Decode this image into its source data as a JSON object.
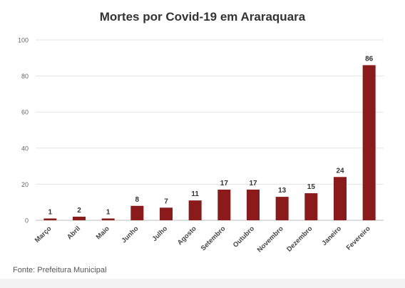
{
  "chart_data": {
    "type": "bar",
    "title": "Mortes por Covid-19 em Araraquara",
    "categories": [
      "Março",
      "Abril",
      "Maio",
      "Junho",
      "Julho",
      "Agosto",
      "Setembro",
      "Outubro",
      "Novembro",
      "Dezembro",
      "Janeiro",
      "Fevereiro"
    ],
    "values": [
      1,
      2,
      1,
      8,
      7,
      11,
      17,
      17,
      13,
      15,
      24,
      86
    ],
    "xlabel": "",
    "ylabel": "",
    "ylim": [
      0,
      100
    ],
    "yticks": [
      0,
      20,
      40,
      60,
      80,
      100
    ],
    "grid": true,
    "bar_color": "#8b1a1a",
    "source": "Fonte: Prefeitura Municipal"
  }
}
